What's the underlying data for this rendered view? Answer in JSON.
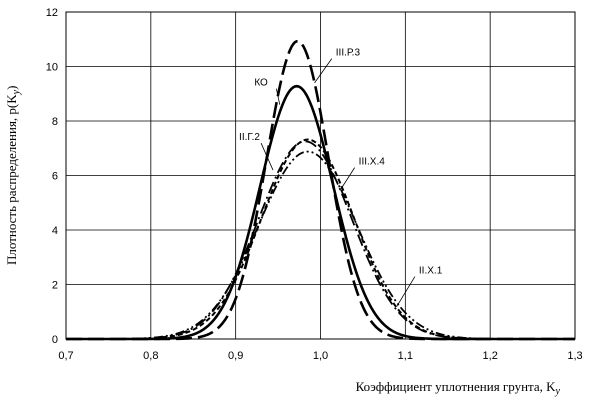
{
  "chart_data": {
    "type": "line",
    "title": "",
    "xlabel": "Коэффициент уплотнения грунта, K",
    "xlabel_sub": "у",
    "ylabel": "Плотность распределения, p(K",
    "ylabel_sub": "у",
    "ylabel_close": ")",
    "xlim": [
      0.7,
      1.3
    ],
    "ylim": [
      0,
      12
    ],
    "xticks": [
      {
        "v": 0.7,
        "label": "0,7"
      },
      {
        "v": 0.8,
        "label": "0,8"
      },
      {
        "v": 0.9,
        "label": "0,9"
      },
      {
        "v": 1.0,
        "label": "1,0"
      },
      {
        "v": 1.1,
        "label": "1,1"
      },
      {
        "v": 1.2,
        "label": "1,2"
      },
      {
        "v": 1.3,
        "label": "1,3"
      }
    ],
    "yticks": [
      {
        "v": 0,
        "label": "0"
      },
      {
        "v": 2,
        "label": "2"
      },
      {
        "v": 4,
        "label": "4"
      },
      {
        "v": 6,
        "label": "6"
      },
      {
        "v": 8,
        "label": "8"
      },
      {
        "v": 10,
        "label": "10"
      },
      {
        "v": 12,
        "label": "12"
      }
    ],
    "grid": true,
    "series": [
      {
        "name": "КО",
        "mean": 0.972,
        "sd": 0.043,
        "style": "solid"
      },
      {
        "name": "III.Р.3",
        "mean": 0.973,
        "sd": 0.0365,
        "style": "longdash"
      },
      {
        "name": "II.Г.2",
        "mean": 0.982,
        "sd": 0.055,
        "style": "dashdot"
      },
      {
        "name": "III.Х.4",
        "mean": 0.985,
        "sd": 0.0545,
        "style": "shortdash"
      },
      {
        "name": "II.Х.1",
        "mean": 0.985,
        "sd": 0.058,
        "style": "dashdotdot"
      }
    ],
    "annotations": [
      {
        "text": "III.Р.3",
        "x": 1.018,
        "y": 10.4,
        "ax": 0.993,
        "ay": 9.4
      },
      {
        "text": "КО",
        "x": 0.922,
        "y": 9.3,
        "ax": 0.952,
        "ay": 8.6
      },
      {
        "text": "II.Г.2",
        "x": 0.904,
        "y": 7.3,
        "ax": 0.944,
        "ay": 6.2
      },
      {
        "text": "III.Х.4",
        "x": 1.045,
        "y": 6.4,
        "ax": 1.024,
        "ay": 5.5
      },
      {
        "text": "II.Х.1",
        "x": 1.116,
        "y": 2.4,
        "ax": 1.09,
        "ay": 1.2
      }
    ]
  }
}
